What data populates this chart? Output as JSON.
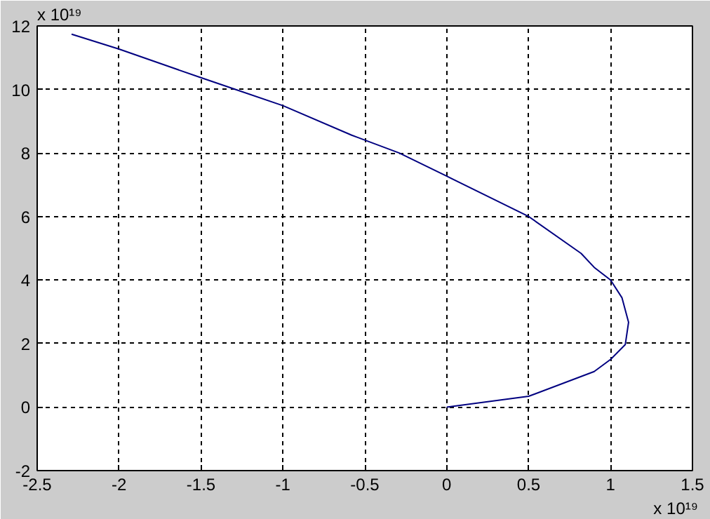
{
  "chart_data": {
    "type": "line",
    "x": [
      0,
      0.5,
      0.9,
      1.0,
      1.09,
      1.11,
      1.07,
      1.0,
      0.9,
      0.82,
      0.5,
      0,
      -0.29,
      -0.58,
      -1.0,
      -1.29,
      -1.5,
      -2.0,
      -2.29
    ],
    "series": [
      {
        "color": "#000080",
        "values": [
          0,
          0.34,
          1.12,
          1.5,
          1.97,
          2.67,
          3.44,
          4.0,
          4.4,
          4.84,
          6.0,
          7.27,
          8.0,
          8.56,
          9.49,
          10.0,
          10.37,
          11.27,
          11.74
        ]
      }
    ],
    "xlim": [
      -2.5,
      1.5
    ],
    "xticks": [
      -2.5,
      -2,
      -1.5,
      -1,
      -0.5,
      0,
      0.5,
      1,
      1.5
    ],
    "ylim": [
      -2,
      12
    ],
    "yticks": [
      -2,
      0,
      2,
      4,
      6,
      8,
      10,
      12
    ],
    "grid": true,
    "line_style": "solid",
    "annotations": [
      "x 10¹⁹",
      "x 10¹⁹"
    ]
  }
}
